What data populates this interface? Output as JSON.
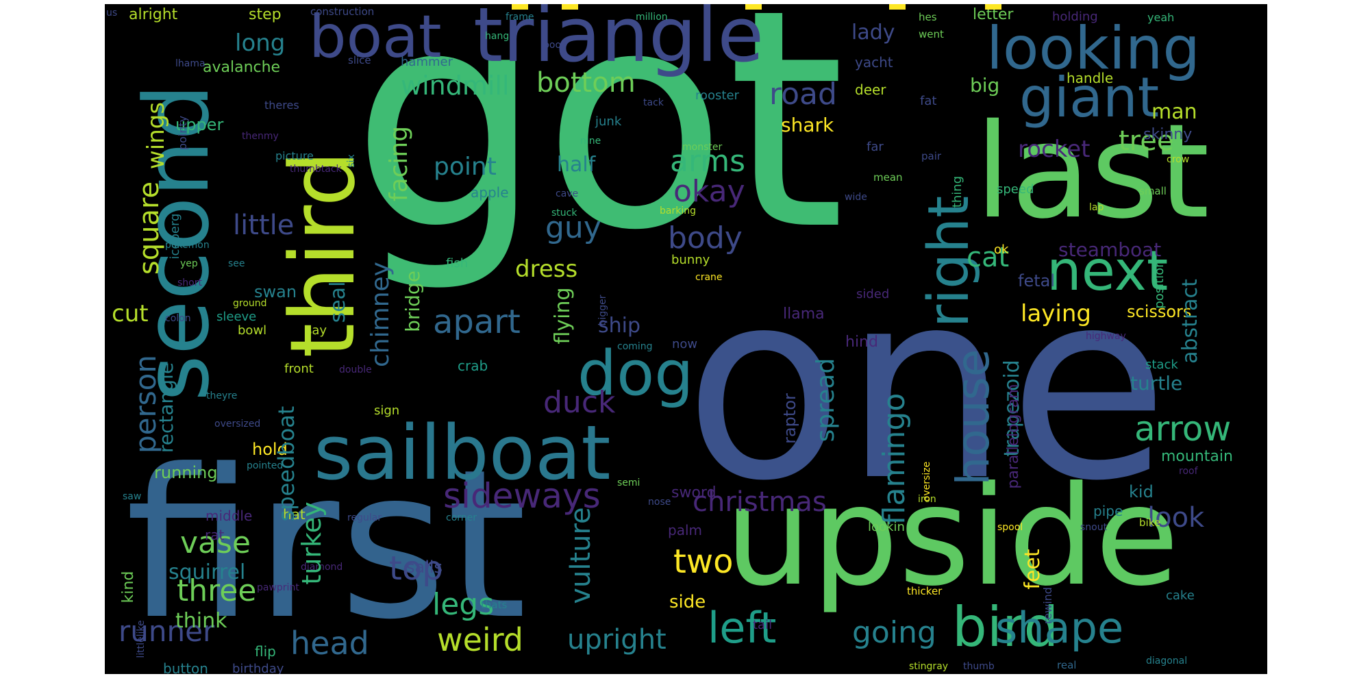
{
  "cloud": {
    "background": "#000000",
    "palette": [
      "#440154",
      "#482878",
      "#3e4989",
      "#31688e",
      "#26828e",
      "#1f9e89",
      "#35b779",
      "#6ece58",
      "#b5de2b",
      "#fde725"
    ],
    "words": {
      "got": "got",
      "one": "one",
      "first": "first",
      "upside": "upside",
      "second": "second",
      "last": "last",
      "third": "third",
      "triangle": "triangle",
      "sailboat": "sailboat",
      "looking": "looking",
      "boat": "boat",
      "bird": "bird",
      "giant": "giant",
      "next": "next",
      "right": "right",
      "dog": "dog",
      "house": "house",
      "shape": "shape",
      "left": "left",
      "arrow": "arrow",
      "sideways": "sideways",
      "apart": "apart",
      "weird": "weird",
      "christmas": "christmas",
      "going": "going",
      "two": "two",
      "flamingo": "flamingo",
      "head": "head",
      "windmill": "windmill",
      "bottom": "bottom",
      "person": "person",
      "runner": "runner",
      "legs": "legs",
      "top": "top",
      "upright": "upright",
      "vase": "vase",
      "three": "three",
      "duck": "duck",
      "body": "body",
      "guy": "guy",
      "arms": "arms",
      "okay": "okay",
      "point": "point",
      "road": "road",
      "tree": "tree",
      "spread": "spread",
      "turkey": "turkey",
      "chimney": "chimney",
      "facing": "facing",
      "square": "square",
      "wings": "wings",
      "little": "little",
      "long": "long",
      "look": "look",
      "cat": "cat",
      "rocket": "rocket",
      "dress": "dress",
      "laying": "laying",
      "trapezoid": "trapezoid",
      "feet": "feet",
      "vulture": "vulture",
      "abstract": "abstract",
      "half": "half",
      "seal": "seal",
      "cut": "cut",
      "squirrel": "squirrel",
      "speedboat": "speedboat",
      "rectangle": "rectangle",
      "lady": "lady",
      "man": "man",
      "big": "big",
      "ship": "ship",
      "shark": "shark",
      "steamboat": "steamboat",
      "turtle": "turtle",
      "flying": "flying",
      "bridge": "bridge",
      "raptor": "raptor",
      "swan": "swan",
      "think": "think",
      "side": "side",
      "sails": "sails",
      "kid": "kid",
      "fetal": "fetal",
      "scissors": "scissors",
      "mountain": "mountain",
      "parallelogram": "parallelogram",
      "hold": "hold",
      "running": "running",
      "iceberg": "iceberg",
      "kind": "kind",
      "alright": "alright",
      "step": "step",
      "avalanche": "avalanche",
      "letter": "letter",
      "upper": "upper",
      "skinny": "skinny",
      "llama": "llama",
      "hind": "hind",
      "apple": "apple",
      "crab": "crab",
      "yacht": "yacht",
      "deer": "deer",
      "handle": "handle",
      "palm": "palm",
      "sword": "sword",
      "middle": "middle",
      "hat": "hat",
      "rat": "rat",
      "button": "button",
      "flip": "flip",
      "birthday": "birthday",
      "stack": "stack",
      "position": "position",
      "cake": "cake",
      "pipe": "pipe",
      "bunny": "bunny",
      "fish": "fish",
      "sign": "sign",
      "ok": "ok",
      "sided": "sided",
      "now": "now",
      "front": "front",
      "say": "say",
      "bowl": "bowl",
      "sleeve": "sleeve",
      "pointy": "pointy",
      "speed": "speed",
      "thing": "thing",
      "mean": "mean",
      "far": "far",
      "fat": "fat",
      "hes": "hes",
      "went": "went",
      "yeah": "yeah",
      "holding": "holding",
      "million": "million",
      "construction": "construction",
      "frame": "frame",
      "us": "us",
      "hang": "hang",
      "boot": "boot",
      "slice": "slice",
      "lhama": "lhama",
      "hammer": "hammer",
      "rooster": "rooster",
      "tack": "tack",
      "theres": "theres",
      "junk": "junk",
      "thenmy": "thenmy",
      "nine": "nine",
      "monster": "monster",
      "picture": "picture",
      "thumbtack": "thumbtack",
      "six": "six",
      "pair": "pair",
      "crow": "crow",
      "wide": "wide",
      "small": "small",
      "cave": "cave",
      "barking": "barking",
      "lap": "lap",
      "stuck": "stuck",
      "pokemon": "pokemon",
      "yep": "yep",
      "see": "see",
      "short": "short",
      "crane": "crane",
      "ground": "ground",
      "colon": "colon",
      "bigger": "bigger",
      "coming": "coming",
      "highway": "highway",
      "theyre": "theyre",
      "double": "double",
      "oversized": "oversized",
      "oversize": "oversize",
      "pointed": "pointed",
      "semi": "semi",
      "roof": "roof",
      "saw": "saw",
      "regular": "regular",
      "corner": "corner",
      "nose": "nose",
      "iron": "iron",
      "spool": "spool",
      "snout": "snout",
      "bike": "bike",
      "lookin": "lookin",
      "littlelike": "littlelike",
      "pawprint": "pawprint",
      "diamond": "diamond",
      "thats": "thats",
      "tail": "tail",
      "rewind": "rewind",
      "thicker": "thicker",
      "stingray": "stingray",
      "thumb": "thumb",
      "real": "real",
      "diagonal": "diagonal"
    }
  }
}
